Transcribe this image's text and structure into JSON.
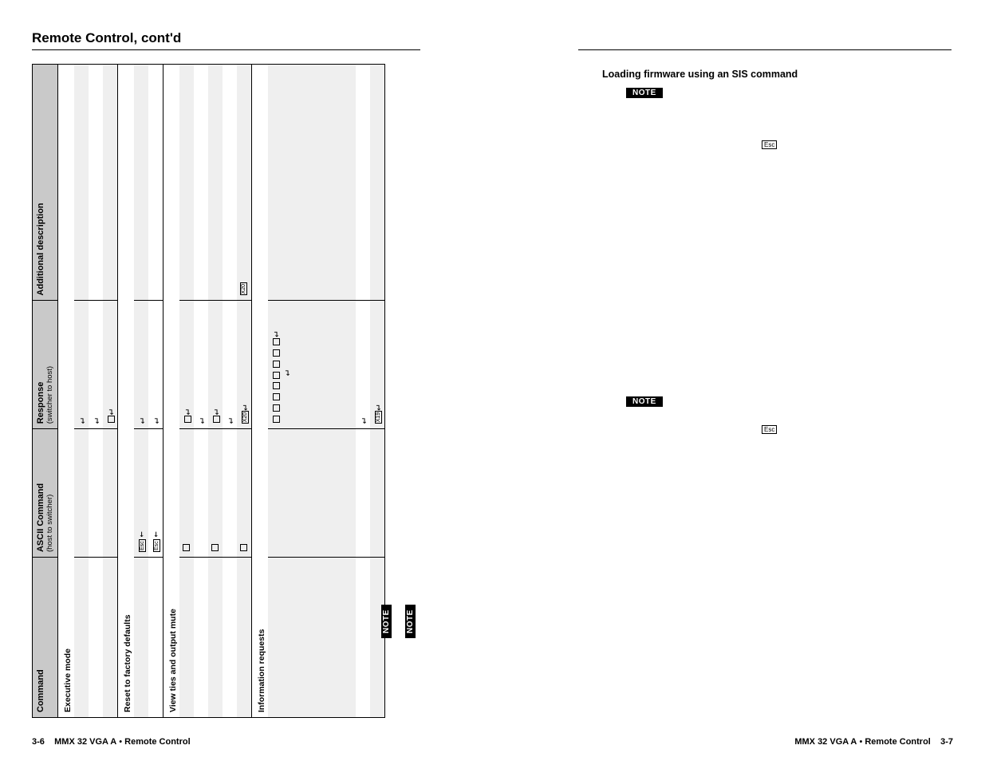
{
  "page_title": "Remote Control, cont'd",
  "table": {
    "headers": {
      "c1": "Command",
      "c2": "ASCII Command",
      "c2_sub": "(host to switcher)",
      "c3": "Response",
      "c3_sub": "(switcher to host)",
      "c4": "Additional description"
    },
    "col_widths": {
      "c1": 200,
      "c2": 160,
      "c3": 160,
      "c4": 295
    },
    "sections": [
      {
        "title": "Executive mode",
        "rows": [
          {
            "shade": true,
            "c2": "",
            "c3_glyph": "ret",
            "c4": ""
          },
          {
            "shade": false,
            "c2": "",
            "c3_glyph": "ret",
            "c4": ""
          },
          {
            "shade": true,
            "c2": "",
            "c3_glyph": "box-ret",
            "c4": ""
          }
        ]
      },
      {
        "title": "Reset to factory defaults",
        "rows": [
          {
            "shade": true,
            "c2_glyph": "esc-arrow",
            "c3_glyph": "ret",
            "c4": ""
          },
          {
            "shade": false,
            "c2_glyph": "esc-arrow",
            "c3_glyph": "ret",
            "c4": ""
          }
        ]
      },
      {
        "title": "View ties and output mute",
        "rows": [
          {
            "shade": true,
            "c2_glyph": "box",
            "c3_glyph": "box-ret",
            "c4": ""
          },
          {
            "shade": false,
            "c2": "",
            "c3_glyph": "ret",
            "c4": ""
          },
          {
            "shade": true,
            "c2_glyph": "box",
            "c3_glyph": "box-ret",
            "c4": ""
          },
          {
            "shade": false,
            "c2": "",
            "c3_glyph": "ret",
            "c4": ""
          },
          {
            "shade": true,
            "c2_glyph": "box",
            "c3_glyph": "var-ret",
            "c3_var": "X20",
            "c4_var": "X20"
          }
        ]
      },
      {
        "title": "Information requests",
        "rows": [
          {
            "shade": true,
            "c2": "",
            "c3_glyph": "multi-box",
            "c4": ""
          },
          {
            "shade": false,
            "c2": "",
            "c3_glyph": "ret",
            "c4": ""
          },
          {
            "shade": true,
            "c2": "",
            "c3_glyph": "var-ret-short",
            "c3_var": "X19",
            "c4": ""
          }
        ]
      }
    ]
  },
  "note_label": "NOTE",
  "right": {
    "heading": "Loading firmware using an SIS command",
    "esc_label": "Esc"
  },
  "footer": {
    "left_page": "3-6",
    "right_page": "3-7",
    "product": "MMX 32 VGA A",
    "chapter": "Remote Control",
    "bullet": "•"
  },
  "colors": {
    "header_bg": "#c9c9c9",
    "shade_bg": "#efefef",
    "rule": "#000000",
    "note_bg": "#000000",
    "note_fg": "#ffffff"
  }
}
